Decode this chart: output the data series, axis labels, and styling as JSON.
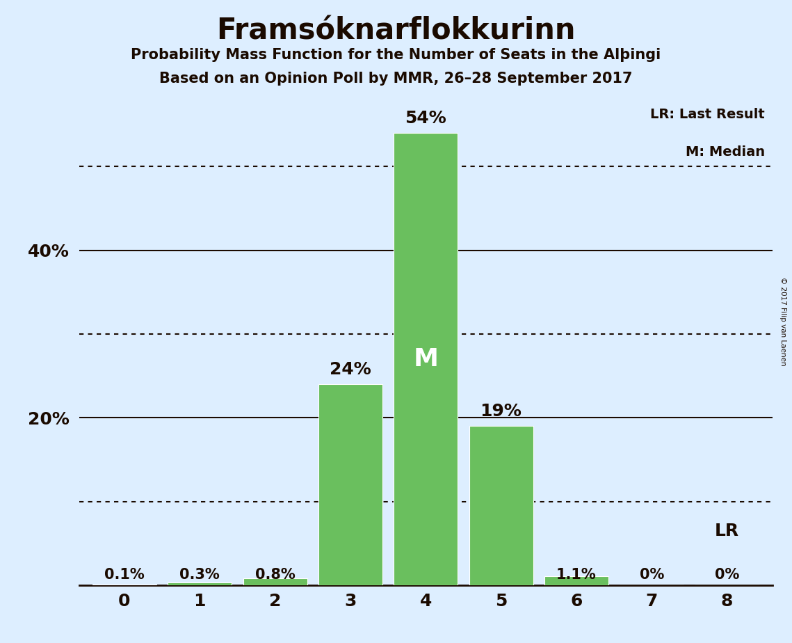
{
  "title": "Framsóknarflokkurinn",
  "subtitle1": "Probability Mass Function for the Number of Seats in the Alþingi",
  "subtitle2": "Based on an Opinion Poll by MMR, 26–28 September 2017",
  "seats": [
    0,
    1,
    2,
    3,
    4,
    5,
    6,
    7,
    8
  ],
  "probabilities": [
    0.1,
    0.3,
    0.8,
    24.0,
    54.0,
    19.0,
    1.1,
    0.0,
    0.0
  ],
  "bar_color": "#6abf5e",
  "background_color": "#ddeeff",
  "median_seat": 4,
  "median_label": "M",
  "legend_lr": "LR: Last Result",
  "legend_m": "M: Median",
  "yticks_labeled": [
    20,
    40
  ],
  "ytick_labels_map": {
    "20": "20%",
    "40": "40%"
  },
  "solid_lines": [
    0,
    20,
    40
  ],
  "dotted_lines": [
    10,
    30,
    50
  ],
  "ylim": [
    0,
    58
  ],
  "copyright": "© 2017 Filip van Laenen",
  "bar_labels": [
    "0.1%",
    "0.3%",
    "0.8%",
    "24%",
    "54%",
    "19%",
    "1.1%",
    "0%",
    "0%"
  ],
  "lr_annotation_seat": 8,
  "lr_annotation": "LR"
}
